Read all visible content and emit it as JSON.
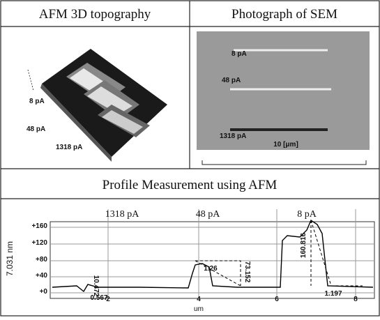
{
  "table": {
    "headers": [
      "AFM 3D topography",
      "Photograph of SEM"
    ],
    "afm_labels": [
      "8 pA",
      "48 pA",
      "1318 pA"
    ],
    "sem_labels": [
      "8 pA",
      "48 pA",
      "1318 pA"
    ],
    "scale_label": "10 [μm]",
    "profile_header": "Profile Measurement using AFM",
    "profile": {
      "y_label": "7.031 nm",
      "x_label": "um",
      "yticks": [
        "+160",
        "+120",
        "+80",
        "+40",
        "+0"
      ],
      "xticks": [
        "2",
        "4",
        "6",
        "8"
      ],
      "current_labels": [
        "1318 pA",
        "48 pA",
        "8 pA"
      ],
      "annotations": [
        "1.26",
        "73.152",
        "160.816",
        "1.197",
        "0.567",
        "10.472"
      ]
    }
  }
}
